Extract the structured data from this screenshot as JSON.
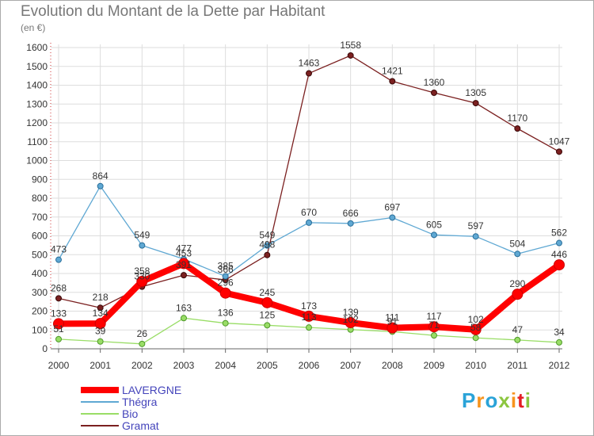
{
  "header": {
    "title": "Evolution du Montant de la Dette par Habitant",
    "unit": "(en €)"
  },
  "logo": {
    "text": "Proxiti",
    "colors": [
      "#2aa3d8",
      "#f7941d",
      "#2aa3d8",
      "#8cc63f",
      "#f7941d",
      "#e31e24",
      "#8cc63f"
    ]
  },
  "chart_data": {
    "type": "line",
    "title": "Evolution du Montant de la Dette par Habitant",
    "subtitle": "(en €)",
    "categories": [
      "2000",
      "2001",
      "2002",
      "2003",
      "2004",
      "2005",
      "2006",
      "2007",
      "2008",
      "2009",
      "2010",
      "2011",
      "2012"
    ],
    "ylim": [
      0,
      1600
    ],
    "yticks": [
      0,
      100,
      200,
      300,
      400,
      500,
      600,
      700,
      800,
      900,
      1000,
      1100,
      1200,
      1300,
      1400,
      1500,
      1600
    ],
    "grid": true,
    "legend_position": "bottom-left",
    "series": [
      {
        "name": "LAVERGNE",
        "color": "#ff0000",
        "values": [
          133,
          134,
          358,
          453,
          296,
          245,
          173,
          139,
          111,
          117,
          102,
          290,
          446
        ]
      },
      {
        "name": "Thégra",
        "color": "#5fa8d3",
        "values": [
          473,
          864,
          549,
          477,
          385,
          549,
          670,
          666,
          697,
          605,
          597,
          504,
          562
        ]
      },
      {
        "name": "Bio",
        "color": "#99dd66",
        "values": [
          51,
          39,
          26,
          163,
          136,
          125,
          113,
          102,
          91,
          71,
          58,
          47,
          34
        ]
      },
      {
        "name": "Gramat",
        "color": "#7b2020",
        "values": [
          268,
          218,
          330,
          391,
          366,
          498,
          1463,
          1558,
          1421,
          1360,
          1305,
          1170,
          1047
        ]
      }
    ]
  }
}
